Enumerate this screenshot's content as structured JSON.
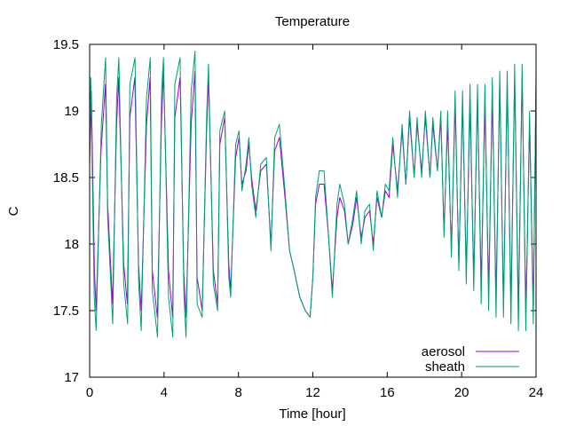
{
  "chart_data": {
    "type": "line",
    "title": "Temperature",
    "xlabel": "Time [hour]",
    "ylabel": "C",
    "xlim": [
      0,
      24
    ],
    "ylim": [
      17,
      19.5
    ],
    "x_ticks": [
      0,
      4,
      8,
      12,
      16,
      20,
      24
    ],
    "x_tick_labels": [
      "0",
      "4",
      "8",
      "12",
      "16",
      "20",
      "24"
    ],
    "y_ticks": [
      17,
      17.5,
      18,
      18.5,
      19,
      19.5
    ],
    "y_tick_labels": [
      "17",
      "17.5",
      "18",
      "18.5",
      "19",
      "19.5"
    ],
    "grid": false,
    "legend_position": "bottom-right",
    "series": [
      {
        "name": "aerosol",
        "color": "#9400d3",
        "x": [
          0.0,
          0.09,
          0.26,
          0.35,
          0.61,
          0.85,
          0.97,
          1.23,
          1.45,
          1.56,
          1.83,
          2.03,
          2.16,
          2.43,
          2.63,
          2.77,
          3.06,
          3.25,
          3.37,
          3.64,
          3.86,
          3.97,
          4.24,
          4.46,
          4.58,
          4.86,
          5.06,
          5.18,
          5.46,
          5.66,
          5.78,
          6.05,
          6.29,
          6.39,
          6.65,
          6.88,
          7.0,
          7.26,
          7.48,
          7.58,
          7.85,
          8.03,
          8.19,
          8.41,
          8.56,
          8.71,
          8.93,
          9.2,
          9.5,
          9.75,
          9.95,
          10.2,
          10.5,
          10.75,
          11.0,
          11.3,
          11.6,
          11.85,
          12.0,
          12.15,
          12.35,
          12.6,
          12.85,
          13.05,
          13.3,
          13.45,
          13.7,
          13.9,
          14.15,
          14.35,
          14.6,
          14.8,
          15.05,
          15.25,
          15.45,
          15.7,
          15.9,
          16.1,
          16.3,
          16.55,
          16.8,
          17.0,
          17.2,
          17.45,
          17.6,
          17.85,
          18.05,
          18.3,
          18.45,
          18.7,
          18.88,
          19.05,
          19.25,
          19.45,
          19.65,
          19.85,
          20.05,
          20.25,
          20.45,
          20.65,
          20.85,
          21.05,
          21.25,
          21.45,
          21.65,
          21.85,
          22.05,
          22.25,
          22.45,
          22.65,
          22.85,
          23.05,
          23.25,
          23.45,
          23.65,
          23.85,
          24.0
        ],
        "y": [
          18.6,
          19.15,
          17.8,
          17.5,
          18.7,
          19.2,
          18.3,
          17.55,
          18.9,
          19.25,
          17.85,
          17.55,
          18.95,
          19.25,
          17.85,
          17.5,
          18.9,
          19.25,
          17.8,
          17.45,
          18.9,
          19.3,
          17.8,
          17.45,
          18.95,
          19.25,
          17.8,
          17.45,
          18.9,
          19.3,
          17.75,
          17.5,
          18.85,
          19.25,
          17.8,
          17.55,
          18.75,
          18.95,
          17.85,
          17.65,
          18.65,
          18.8,
          18.45,
          18.55,
          18.75,
          18.5,
          18.25,
          18.55,
          18.6,
          18.0,
          18.7,
          18.8,
          18.35,
          17.95,
          17.8,
          17.6,
          17.5,
          17.45,
          17.75,
          18.3,
          18.45,
          18.45,
          18.05,
          17.65,
          18.2,
          18.35,
          18.25,
          18.0,
          18.15,
          18.35,
          18.05,
          18.2,
          18.25,
          18.0,
          18.35,
          18.2,
          18.4,
          18.35,
          18.75,
          18.4,
          18.85,
          18.45,
          18.95,
          18.5,
          18.9,
          18.55,
          18.95,
          18.5,
          18.9,
          18.55,
          18.95,
          18.1,
          18.9,
          17.95,
          19.05,
          17.85,
          19.05,
          17.8,
          19.05,
          17.75,
          19.1,
          17.7,
          19.05,
          17.65,
          19.1,
          17.6,
          19.2,
          17.55,
          19.2,
          17.55,
          19.25,
          17.5,
          19.25,
          17.5,
          18.9,
          17.55,
          19.2
        ]
      },
      {
        "name": "sheath",
        "color": "#009e73",
        "x": [
          0.0,
          0.06,
          0.25,
          0.35,
          0.63,
          0.86,
          0.97,
          1.24,
          1.45,
          1.57,
          1.83,
          2.04,
          2.16,
          2.44,
          2.64,
          2.77,
          3.06,
          3.26,
          3.37,
          3.65,
          3.87,
          3.97,
          4.24,
          4.47,
          4.58,
          4.86,
          5.07,
          5.18,
          5.46,
          5.67,
          5.78,
          6.05,
          6.29,
          6.39,
          6.65,
          6.88,
          7.0,
          7.26,
          7.48,
          7.58,
          7.85,
          8.03,
          8.19,
          8.41,
          8.56,
          8.71,
          8.93,
          9.2,
          9.5,
          9.75,
          9.95,
          10.2,
          10.5,
          10.75,
          11.0,
          11.3,
          11.6,
          11.85,
          12.0,
          12.15,
          12.35,
          12.6,
          12.85,
          13.05,
          13.3,
          13.45,
          13.7,
          13.9,
          14.15,
          14.35,
          14.6,
          14.8,
          15.05,
          15.25,
          15.45,
          15.7,
          15.9,
          16.1,
          16.3,
          16.55,
          16.8,
          17.0,
          17.2,
          17.45,
          17.6,
          17.85,
          18.05,
          18.3,
          18.45,
          18.7,
          18.88,
          19.05,
          19.25,
          19.45,
          19.65,
          19.85,
          20.05,
          20.25,
          20.45,
          20.65,
          20.85,
          21.05,
          21.25,
          21.45,
          21.65,
          21.85,
          22.05,
          22.25,
          22.45,
          22.65,
          22.85,
          23.05,
          23.25,
          23.45,
          23.65,
          23.85,
          24.0
        ],
        "y": [
          18.7,
          19.25,
          17.6,
          17.35,
          18.9,
          19.4,
          18.2,
          17.4,
          19.1,
          19.4,
          17.7,
          17.4,
          19.2,
          19.4,
          17.7,
          17.35,
          19.1,
          19.4,
          17.65,
          17.3,
          19.15,
          19.4,
          17.6,
          17.3,
          19.2,
          19.4,
          17.6,
          17.3,
          19.15,
          19.45,
          17.55,
          17.45,
          18.95,
          19.35,
          17.7,
          17.5,
          18.85,
          19.0,
          17.75,
          17.6,
          18.75,
          18.85,
          18.4,
          18.6,
          18.8,
          18.45,
          18.2,
          18.6,
          18.65,
          17.95,
          18.8,
          18.9,
          18.4,
          17.95,
          17.8,
          17.6,
          17.5,
          17.45,
          17.75,
          18.35,
          18.55,
          18.55,
          18.05,
          17.6,
          18.3,
          18.45,
          18.3,
          18.0,
          18.2,
          18.4,
          18.0,
          18.25,
          18.3,
          17.95,
          18.4,
          18.2,
          18.45,
          18.4,
          18.8,
          18.35,
          18.9,
          18.45,
          19.0,
          18.5,
          18.95,
          18.5,
          19.0,
          18.5,
          18.95,
          18.55,
          19.0,
          18.05,
          19.0,
          17.9,
          19.15,
          17.8,
          19.15,
          17.7,
          19.2,
          17.65,
          19.2,
          17.55,
          19.2,
          17.5,
          19.25,
          17.45,
          19.3,
          17.45,
          19.3,
          17.4,
          19.35,
          17.35,
          19.35,
          17.35,
          19.0,
          17.4,
          19.3
        ]
      }
    ]
  }
}
